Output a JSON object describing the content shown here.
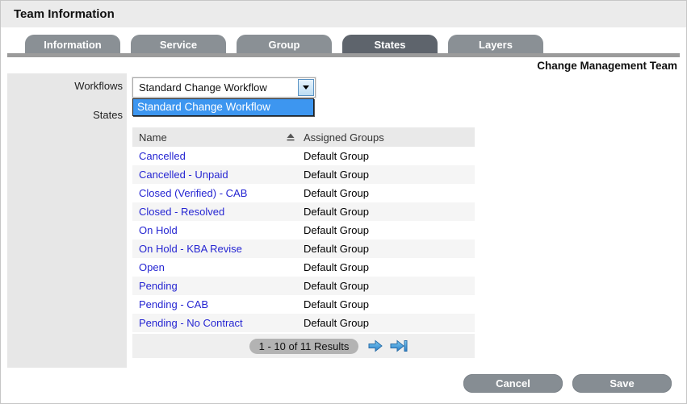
{
  "page": {
    "title": "Team Information",
    "team_name": "Change Management Team"
  },
  "tabs": [
    {
      "label": "Information",
      "active": false
    },
    {
      "label": "Service",
      "active": false
    },
    {
      "label": "Group",
      "active": false
    },
    {
      "label": "States",
      "active": true
    },
    {
      "label": "Layers",
      "active": false
    }
  ],
  "sidebar": {
    "workflows_label": "Workflows",
    "states_label": "States"
  },
  "workflow_select": {
    "value": "Standard Change Workflow",
    "options": [
      "Standard Change Workflow"
    ]
  },
  "table": {
    "columns": [
      "Name",
      "Assigned Groups"
    ],
    "rows": [
      {
        "name": "Cancelled",
        "group": "Default Group"
      },
      {
        "name": "Cancelled - Unpaid",
        "group": "Default Group"
      },
      {
        "name": "Closed (Verified) - CAB",
        "group": "Default Group"
      },
      {
        "name": "Closed - Resolved",
        "group": "Default Group"
      },
      {
        "name": "On Hold",
        "group": "Default Group"
      },
      {
        "name": "On Hold - KBA Revise",
        "group": "Default Group"
      },
      {
        "name": "Open",
        "group": "Default Group"
      },
      {
        "name": "Pending",
        "group": "Default Group"
      },
      {
        "name": "Pending - CAB",
        "group": "Default Group"
      },
      {
        "name": "Pending - No Contract",
        "group": "Default Group"
      }
    ]
  },
  "pagination": {
    "results_label": "1 - 10 of 11 Results"
  },
  "footer": {
    "cancel_label": "Cancel",
    "save_label": "Save"
  },
  "colors": {
    "accent_blue": "#3d96f0",
    "link_blue": "#2525d2",
    "tab_gray": "#8a9095",
    "tab_active_gray": "#5e646c",
    "sidebar_gray": "#e7e7e7",
    "header_gray": "#ebebeb",
    "button_gray": "#868d93"
  }
}
